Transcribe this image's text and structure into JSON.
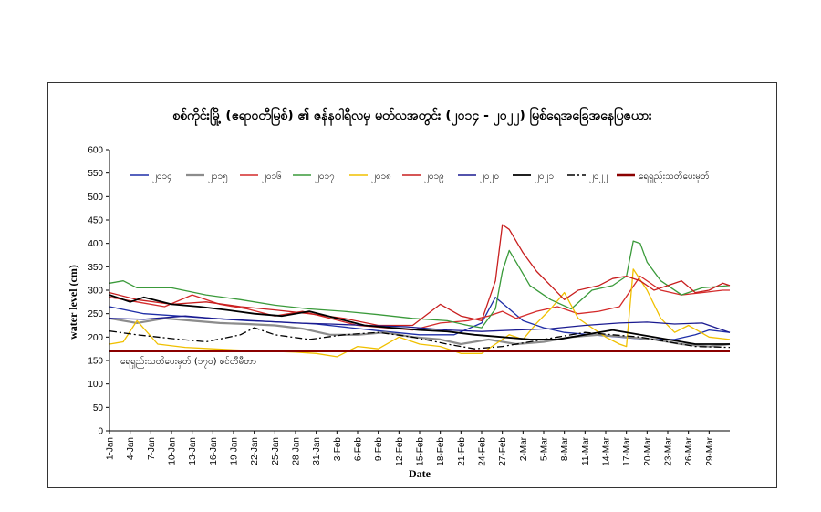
{
  "chart_data": {
    "type": "line",
    "title": "စစ်ကိုင်းမြို့ (ဧရာဝတီမြစ်) ၏ ဇန်နဝါရီလမှ မတ်လအတွင်း (၂၀၁၄ - ၂၀၂၂) မြစ်ရေအခြေအနေပြဇယား",
    "xlabel": "Date",
    "ylabel": "water level (cm)",
    "ylim": [
      0,
      600
    ],
    "yticks": [
      0,
      50,
      100,
      150,
      200,
      250,
      300,
      350,
      400,
      450,
      500,
      550,
      600
    ],
    "xlim": [
      1,
      91
    ],
    "xtick_positions": [
      1,
      4,
      7,
      10,
      13,
      16,
      19,
      22,
      25,
      28,
      31,
      34,
      37,
      40,
      43,
      46,
      49,
      52,
      55,
      58,
      61,
      64,
      67,
      70,
      73,
      76,
      79,
      82,
      85,
      88
    ],
    "xtick_labels": [
      "1-Jan",
      "4-Jan",
      "7-Jan",
      "10-Jan",
      "13-Jan",
      "16-Jan",
      "19-Jan",
      "22-Jan",
      "25-Jan",
      "28-Jan",
      "31-Jan",
      "3-Feb",
      "6-Feb",
      "9-Feb",
      "12-Feb",
      "15-Feb",
      "18-Feb",
      "21-Feb",
      "24-Feb",
      "27-Feb",
      "2-Mar",
      "5-Mar",
      "8-Mar",
      "11-Mar",
      "14-Mar",
      "17-Mar",
      "20-Mar",
      "23-Mar",
      "26-Mar",
      "29-Mar"
    ],
    "danger_label": "ရေရှည်းသတိပေးမှတ် (၁၇၀) စင်တီမီတာ",
    "legend_position": "top",
    "series": [
      {
        "name": "၂၀၁၄",
        "color": "#1f2fa8",
        "dash": "",
        "width": 1.3,
        "x": [
          1,
          6,
          11,
          16,
          21,
          26,
          31,
          36,
          41,
          46,
          51,
          55,
          57,
          59,
          61,
          64,
          67,
          71,
          75,
          79,
          83,
          86,
          88,
          91
        ],
        "y": [
          265,
          250,
          245,
          240,
          235,
          232,
          228,
          220,
          212,
          205,
          205,
          230,
          285,
          260,
          235,
          220,
          210,
          205,
          200,
          195,
          195,
          205,
          215,
          210
        ]
      },
      {
        "name": "၂၀၁၅",
        "color": "#8c8c8c",
        "dash": "",
        "width": 2.2,
        "x": [
          1,
          5,
          9,
          13,
          17,
          21,
          25,
          29,
          33,
          37,
          41,
          45,
          49,
          52,
          56,
          60,
          64,
          68,
          72,
          76,
          80,
          84,
          88,
          91
        ],
        "y": [
          240,
          230,
          240,
          235,
          230,
          228,
          225,
          218,
          205,
          205,
          210,
          200,
          195,
          185,
          195,
          185,
          190,
          200,
          205,
          200,
          195,
          185,
          180,
          185
        ]
      },
      {
        "name": "၂၀၁၆",
        "color": "#d42a2a",
        "dash": "",
        "width": 1.3,
        "x": [
          1,
          5,
          9,
          13,
          17,
          21,
          25,
          29,
          33,
          37,
          41,
          45,
          49,
          53,
          56,
          58,
          60,
          63,
          66,
          69,
          72,
          75,
          78,
          81,
          84,
          87,
          90,
          91
        ],
        "y": [
          285,
          275,
          265,
          290,
          270,
          260,
          245,
          255,
          240,
          225,
          220,
          215,
          230,
          235,
          245,
          255,
          240,
          255,
          265,
          250,
          255,
          265,
          330,
          300,
          290,
          295,
          300,
          300
        ]
      },
      {
        "name": "၂၀၁၇",
        "color": "#3a9a3a",
        "dash": "",
        "width": 1.3,
        "x": [
          1,
          3,
          5,
          10,
          15,
          20,
          25,
          30,
          35,
          40,
          45,
          50,
          53,
          55,
          57,
          58,
          59,
          60,
          62,
          65,
          68,
          71,
          74,
          76,
          77,
          78,
          79,
          81,
          84,
          87,
          91
        ],
        "y": [
          315,
          320,
          305,
          305,
          290,
          280,
          268,
          260,
          255,
          248,
          240,
          235,
          225,
          220,
          260,
          340,
          385,
          360,
          310,
          280,
          260,
          300,
          310,
          330,
          405,
          400,
          360,
          320,
          290,
          305,
          310
        ]
      },
      {
        "name": "၂၀၁၈",
        "color": "#f0c000",
        "dash": "",
        "width": 1.3,
        "x": [
          1,
          3,
          5,
          8,
          12,
          16,
          20,
          24,
          28,
          31,
          34,
          37,
          40,
          43,
          46,
          49,
          52,
          55,
          57,
          59,
          61,
          63,
          65,
          67,
          69,
          71,
          73,
          75,
          76,
          77,
          79,
          81,
          83,
          85,
          88,
          91
        ],
        "y": [
          185,
          190,
          235,
          185,
          178,
          175,
          172,
          170,
          168,
          165,
          158,
          180,
          175,
          200,
          185,
          180,
          165,
          165,
          185,
          205,
          195,
          230,
          260,
          295,
          240,
          220,
          200,
          185,
          180,
          345,
          300,
          240,
          210,
          225,
          200,
          195
        ]
      },
      {
        "name": "၂၀၁၉",
        "color": "#c81e1e",
        "dash": "",
        "width": 1.3,
        "x": [
          1,
          5,
          10,
          15,
          20,
          25,
          30,
          35,
          40,
          45,
          49,
          52,
          55,
          57,
          58,
          59,
          61,
          63,
          65,
          67,
          69,
          72,
          74,
          76,
          78,
          80,
          82,
          84,
          86,
          88,
          90,
          91
        ],
        "y": [
          295,
          280,
          270,
          275,
          265,
          258,
          250,
          240,
          225,
          225,
          270,
          245,
          235,
          320,
          440,
          430,
          380,
          340,
          310,
          280,
          300,
          310,
          325,
          330,
          320,
          300,
          310,
          320,
          295,
          300,
          315,
          310
        ]
      },
      {
        "name": "၂၀၂၀",
        "color": "#1a1a90",
        "dash": "",
        "width": 1.3,
        "x": [
          1,
          6,
          12,
          16,
          22,
          28,
          33,
          38,
          44,
          50,
          55,
          60,
          65,
          70,
          75,
          79,
          83,
          87,
          91
        ],
        "y": [
          240,
          238,
          245,
          240,
          235,
          230,
          228,
          225,
          222,
          215,
          212,
          215,
          218,
          225,
          230,
          232,
          228,
          230,
          210
        ]
      },
      {
        "name": "၂၀၂၁",
        "color": "#000000",
        "dash": "",
        "width": 1.8,
        "x": [
          1,
          4,
          6,
          10,
          14,
          18,
          22,
          26,
          30,
          34,
          38,
          42,
          46,
          50,
          54,
          58,
          62,
          66,
          70,
          74,
          78,
          82,
          86,
          91
        ],
        "y": [
          290,
          275,
          285,
          270,
          265,
          258,
          250,
          245,
          255,
          240,
          225,
          220,
          215,
          212,
          205,
          200,
          195,
          195,
          205,
          215,
          205,
          195,
          185,
          185
        ]
      },
      {
        "name": "၂၀၂၂",
        "color": "#000000",
        "dash": "8,3,2,3",
        "width": 1.3,
        "x": [
          1,
          5,
          10,
          15,
          20,
          22,
          25,
          30,
          35,
          40,
          45,
          50,
          54,
          58,
          62,
          66,
          70,
          74,
          78,
          82,
          86,
          91
        ],
        "y": [
          213,
          205,
          197,
          190,
          205,
          220,
          205,
          195,
          205,
          210,
          200,
          185,
          175,
          180,
          190,
          200,
          210,
          205,
          200,
          190,
          180,
          178
        ]
      },
      {
        "name": "ရေရှည်းသတိပေးမှတ်",
        "color": "#8b0000",
        "dash": "",
        "width": 2.6,
        "x": [
          1,
          91
        ],
        "y": [
          170,
          170
        ]
      }
    ]
  }
}
